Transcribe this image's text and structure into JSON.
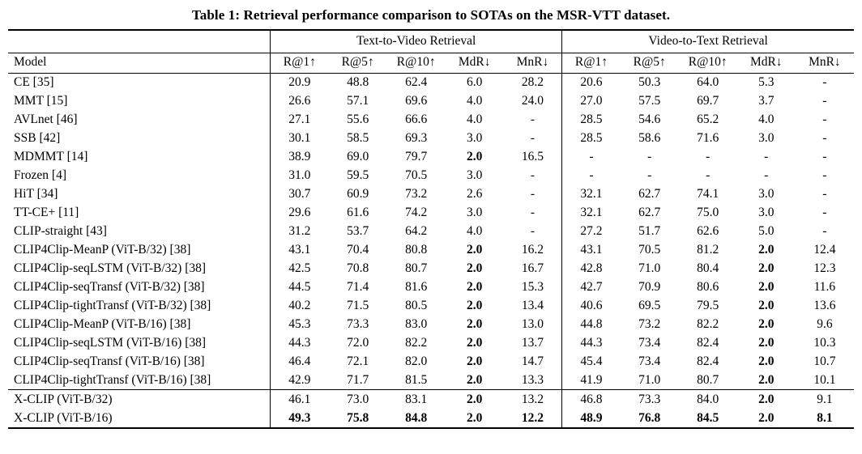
{
  "caption": "Table 1: Retrieval performance comparison to SOTAs on the MSR-VTT dataset.",
  "table": {
    "group_headers": [
      {
        "label": "",
        "span": 1
      },
      {
        "label": "Text-to-Video Retrieval",
        "span": 5
      },
      {
        "label": "Video-to-Text Retrieval",
        "span": 5
      }
    ],
    "column_headers": [
      "Model",
      "R@1↑",
      "R@5↑",
      "R@10↑",
      "MdR↓",
      "MnR↓",
      "R@1↑",
      "R@5↑",
      "R@10↑",
      "MdR↓",
      "MnR↓"
    ],
    "rows": [
      {
        "model": "CE [35]",
        "values": [
          "20.9",
          "48.8",
          "62.4",
          "6.0",
          "28.2",
          "20.6",
          "50.3",
          "64.0",
          "5.3",
          "-"
        ],
        "bold": [],
        "section": 1
      },
      {
        "model": "MMT [15]",
        "values": [
          "26.6",
          "57.1",
          "69.6",
          "4.0",
          "24.0",
          "27.0",
          "57.5",
          "69.7",
          "3.7",
          "-"
        ],
        "bold": [],
        "section": 1
      },
      {
        "model": "AVLnet [46]",
        "values": [
          "27.1",
          "55.6",
          "66.6",
          "4.0",
          "-",
          "28.5",
          "54.6",
          "65.2",
          "4.0",
          "-"
        ],
        "bold": [],
        "section": 1
      },
      {
        "model": "SSB [42]",
        "values": [
          "30.1",
          "58.5",
          "69.3",
          "3.0",
          "-",
          "28.5",
          "58.6",
          "71.6",
          "3.0",
          "-"
        ],
        "bold": [],
        "section": 1
      },
      {
        "model": "MDMMT [14]",
        "values": [
          "38.9",
          "69.0",
          "79.7",
          "2.0",
          "16.5",
          "-",
          "-",
          "-",
          "-",
          "-"
        ],
        "bold": [
          3
        ],
        "section": 1
      },
      {
        "model": "Frozen [4]",
        "values": [
          "31.0",
          "59.5",
          "70.5",
          "3.0",
          "-",
          "-",
          "-",
          "-",
          "-",
          "-"
        ],
        "bold": [],
        "section": 1
      },
      {
        "model": "HiT [34]",
        "values": [
          "30.7",
          "60.9",
          "73.2",
          "2.6",
          "-",
          "32.1",
          "62.7",
          "74.1",
          "3.0",
          "-"
        ],
        "bold": [],
        "section": 1
      },
      {
        "model": "TT-CE+ [11]",
        "values": [
          "29.6",
          "61.6",
          "74.2",
          "3.0",
          "-",
          "32.1",
          "62.7",
          "75.0",
          "3.0",
          "-"
        ],
        "bold": [],
        "section": 1
      },
      {
        "model": "CLIP-straight [43]",
        "values": [
          "31.2",
          "53.7",
          "64.2",
          "4.0",
          "-",
          "27.2",
          "51.7",
          "62.6",
          "5.0",
          "-"
        ],
        "bold": [],
        "section": 1
      },
      {
        "model": "CLIP4Clip-MeanP (ViT-B/32) [38]",
        "values": [
          "43.1",
          "70.4",
          "80.8",
          "2.0",
          "16.2",
          "43.1",
          "70.5",
          "81.2",
          "2.0",
          "12.4"
        ],
        "bold": [
          3,
          8
        ],
        "section": 1
      },
      {
        "model": "CLIP4Clip-seqLSTM (ViT-B/32) [38]",
        "values": [
          "42.5",
          "70.8",
          "80.7",
          "2.0",
          "16.7",
          "42.8",
          "71.0",
          "80.4",
          "2.0",
          "12.3"
        ],
        "bold": [
          3,
          8
        ],
        "section": 1
      },
      {
        "model": "CLIP4Clip-seqTransf (ViT-B/32) [38]",
        "values": [
          "44.5",
          "71.4",
          "81.6",
          "2.0",
          "15.3",
          "42.7",
          "70.9",
          "80.6",
          "2.0",
          "11.6"
        ],
        "bold": [
          3,
          8
        ],
        "section": 1
      },
      {
        "model": "CLIP4Clip-tightTransf (ViT-B/32) [38]",
        "values": [
          "40.2",
          "71.5",
          "80.5",
          "2.0",
          "13.4",
          "40.6",
          "69.5",
          "79.5",
          "2.0",
          "13.6"
        ],
        "bold": [
          3,
          8
        ],
        "section": 1
      },
      {
        "model": "CLIP4Clip-MeanP (ViT-B/16) [38]",
        "values": [
          "45.3",
          "73.3",
          "83.0",
          "2.0",
          "13.0",
          "44.8",
          "73.2",
          "82.2",
          "2.0",
          "9.6"
        ],
        "bold": [
          3,
          8
        ],
        "section": 1
      },
      {
        "model": "CLIP4Clip-seqLSTM (ViT-B/16) [38]",
        "values": [
          "44.3",
          "72.0",
          "82.2",
          "2.0",
          "13.7",
          "44.3",
          "73.4",
          "82.4",
          "2.0",
          "10.3"
        ],
        "bold": [
          3,
          8
        ],
        "section": 1
      },
      {
        "model": "CLIP4Clip-seqTransf (ViT-B/16) [38]",
        "values": [
          "46.4",
          "72.1",
          "82.0",
          "2.0",
          "14.7",
          "45.4",
          "73.4",
          "82.4",
          "2.0",
          "10.7"
        ],
        "bold": [
          3,
          8
        ],
        "section": 1
      },
      {
        "model": "CLIP4Clip-tightTransf (ViT-B/16) [38]",
        "values": [
          "42.9",
          "71.7",
          "81.5",
          "2.0",
          "13.3",
          "41.9",
          "71.0",
          "80.7",
          "2.0",
          "10.1"
        ],
        "bold": [
          3,
          8
        ],
        "section": 1
      },
      {
        "model": "X-CLIP (ViT-B/32)",
        "values": [
          "46.1",
          "73.0",
          "83.1",
          "2.0",
          "13.2",
          "46.8",
          "73.3",
          "84.0",
          "2.0",
          "9.1"
        ],
        "bold": [
          3,
          8
        ],
        "section": 2
      },
      {
        "model": "X-CLIP (ViT-B/16)",
        "values": [
          "49.3",
          "75.8",
          "84.8",
          "2.0",
          "12.2",
          "48.9",
          "76.8",
          "84.5",
          "2.0",
          "8.1"
        ],
        "bold": [
          0,
          1,
          2,
          3,
          4,
          5,
          6,
          7,
          8,
          9
        ],
        "section": 2
      }
    ]
  }
}
